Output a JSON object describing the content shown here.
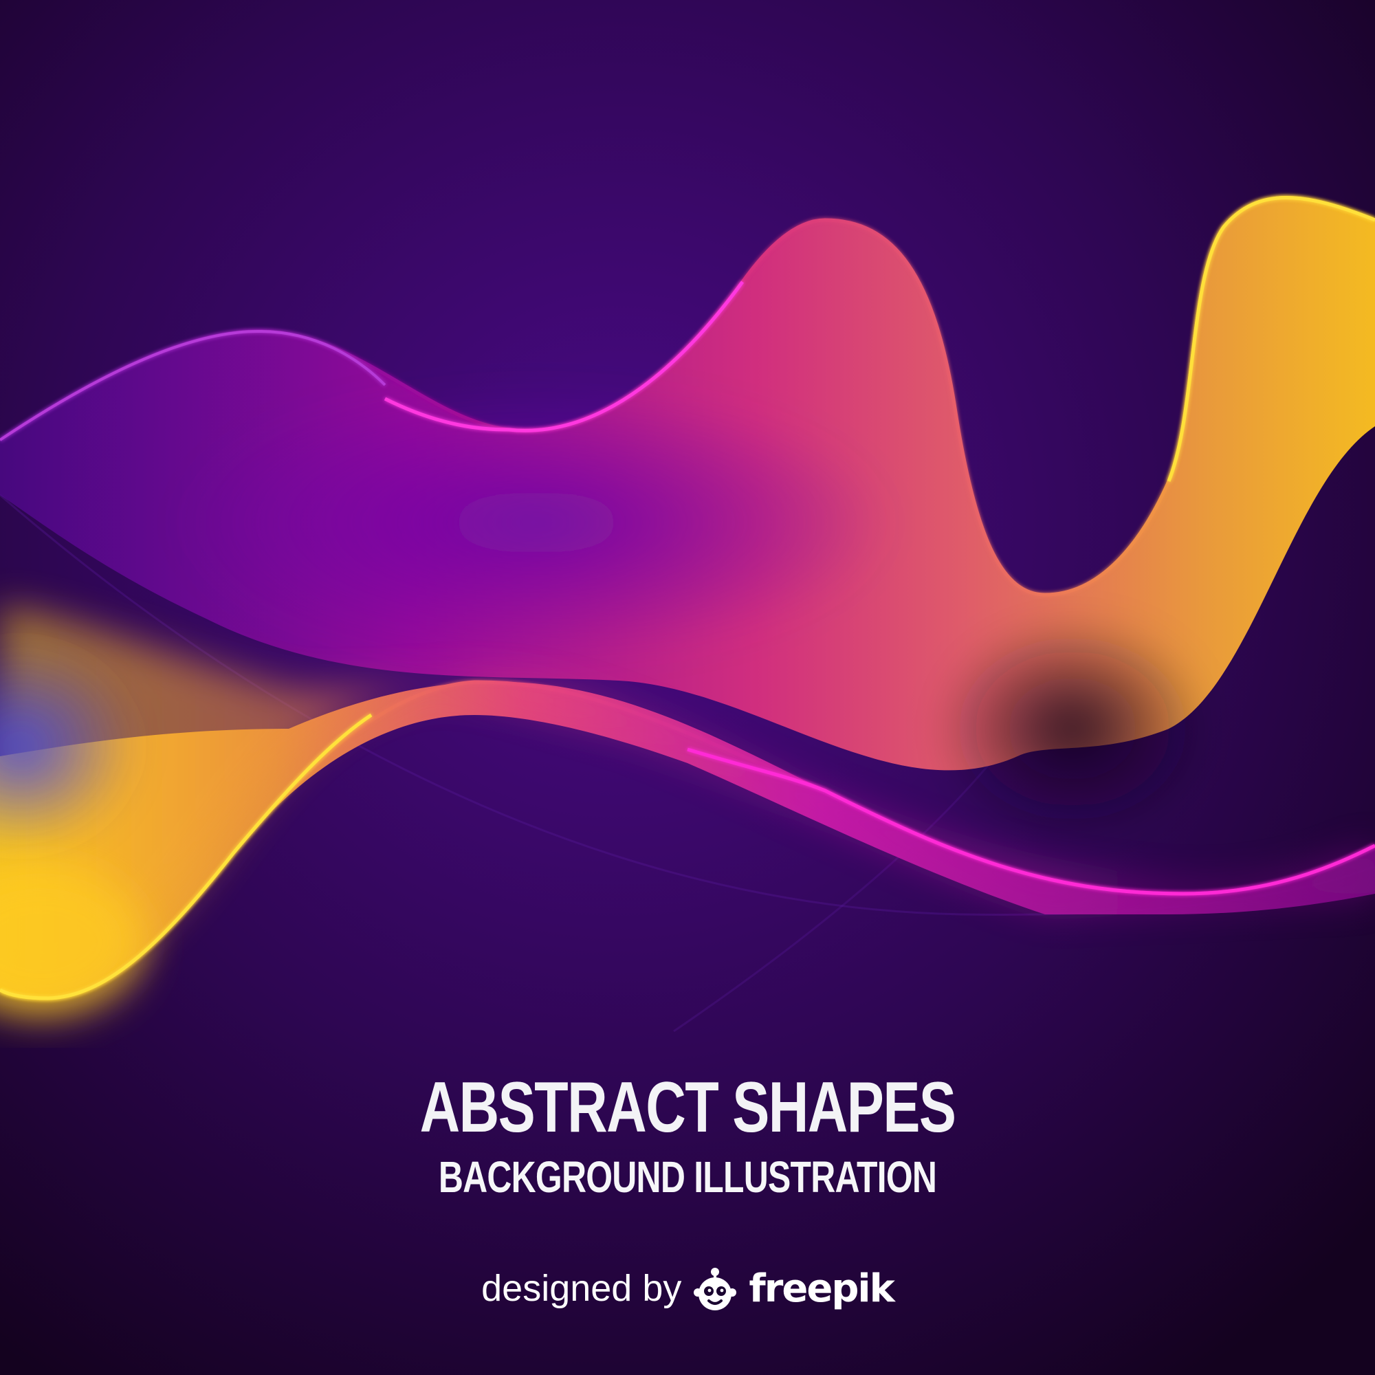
{
  "artwork": {
    "colors": {
      "background_light": "#4a0a86",
      "background_dark": "#14021f",
      "wave_magenta": "#ff2bd6",
      "wave_pink": "#e8456a",
      "wave_orange": "#f39a3c",
      "wave_yellow": "#ffd21f",
      "wave_blue": "#4b4ad8",
      "wave_violet": "#6a0aa0"
    }
  },
  "text": {
    "title": "ABSTRACT SHAPES",
    "subtitle": "BACKGROUND ILLUSTRATION"
  },
  "credit": {
    "prefix": "designed by",
    "logo_icon": "freepik-mascot-icon",
    "brand": "freepik"
  }
}
